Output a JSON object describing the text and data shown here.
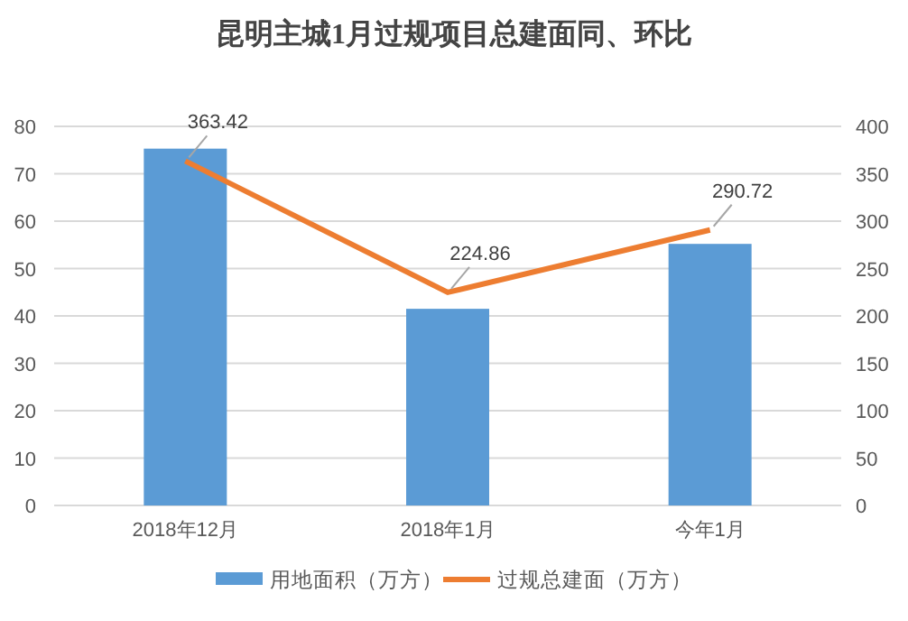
{
  "chart_data": {
    "type": "bar",
    "title": "昆明主城1月过规项目总建面同、环比",
    "categories": [
      "2018年12月",
      "2018年1月",
      "今年1月"
    ],
    "series": [
      {
        "name": "用地面积（万方）",
        "color": "#5b9bd5",
        "values": [
          75.3,
          41.5,
          55.2
        ]
      },
      {
        "name": "过规总建面（万方）",
        "type": "line",
        "axis": "y2",
        "color": "#ed7d31",
        "values": [
          363.42,
          224.86,
          290.72
        ],
        "value_labels": [
          "363.42",
          "224.86",
          "290.72"
        ]
      }
    ],
    "ylim": [
      0,
      80
    ],
    "yticks": [
      0,
      10,
      20,
      30,
      40,
      50,
      60,
      70,
      80
    ],
    "y2lim": [
      0,
      400
    ],
    "y2ticks": [
      0,
      50,
      100,
      150,
      200,
      250,
      300,
      350,
      400
    ],
    "grid": "y",
    "legend": "bottom"
  }
}
